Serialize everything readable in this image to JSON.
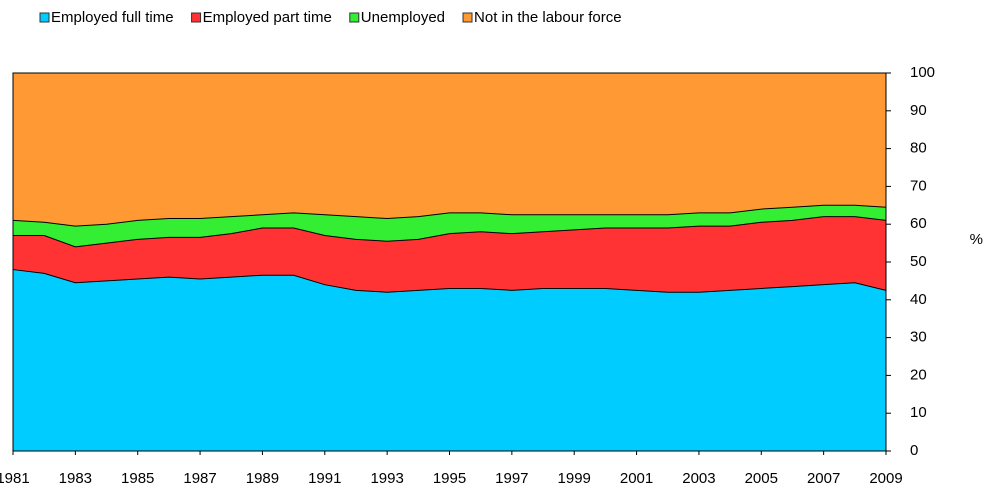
{
  "chart_data": {
    "type": "stacked_area",
    "x": [
      1981,
      1982,
      1983,
      1984,
      1985,
      1986,
      1987,
      1988,
      1989,
      1990,
      1991,
      1992,
      1993,
      1994,
      1995,
      1996,
      1997,
      1998,
      1999,
      2000,
      2001,
      2002,
      2003,
      2004,
      2005,
      2006,
      2007,
      2008,
      2009
    ],
    "series": [
      {
        "name": "Employed full time",
        "color": "#00ccff",
        "values": [
          48,
          47,
          44.5,
          45,
          45.5,
          46,
          45.5,
          46,
          46.5,
          46.5,
          44,
          42.5,
          42,
          42.5,
          43,
          43,
          42.5,
          43,
          43,
          43,
          42.5,
          42,
          42,
          42.5,
          43,
          43.5,
          44,
          44.5,
          42.5
        ]
      },
      {
        "name": "Employed part time",
        "color": "#ff3333",
        "values": [
          9,
          10,
          9.5,
          10,
          10.5,
          10.5,
          11,
          11.5,
          12.5,
          12.5,
          13,
          13.5,
          13.5,
          13.5,
          14.5,
          15,
          15,
          15,
          15.5,
          16,
          16.5,
          17,
          17.5,
          17,
          17.5,
          17.5,
          18,
          17.5,
          18.5
        ]
      },
      {
        "name": "Unemployed",
        "color": "#33ee33",
        "values": [
          4,
          3.5,
          5.5,
          5,
          5,
          5,
          5,
          4.5,
          3.5,
          4,
          5.5,
          6,
          6,
          6,
          5.5,
          5,
          5,
          4.5,
          4,
          3.5,
          3.5,
          3.5,
          3.5,
          3.5,
          3.5,
          3.5,
          3,
          3,
          3.5
        ]
      },
      {
        "name": "Not in the labour force",
        "color": "#ff9933",
        "values": [
          39,
          39.5,
          40.5,
          40,
          39,
          38.5,
          38.5,
          38,
          37.5,
          37,
          37.5,
          38,
          38.5,
          38,
          37,
          37,
          37.5,
          37.5,
          37.5,
          37.5,
          37.5,
          37.5,
          37,
          37,
          36,
          35.5,
          35,
          35,
          35.5
        ]
      }
    ],
    "xlim": [
      1981,
      2009
    ],
    "xticks": [
      1981,
      1983,
      1985,
      1987,
      1989,
      1991,
      1993,
      1995,
      1997,
      1999,
      2001,
      2003,
      2005,
      2007,
      2009
    ],
    "ylim": [
      0,
      100
    ],
    "yticks": [
      0,
      10,
      20,
      30,
      40,
      50,
      60,
      70,
      80,
      90,
      100
    ],
    "ylabel": "%",
    "legend": "top"
  }
}
